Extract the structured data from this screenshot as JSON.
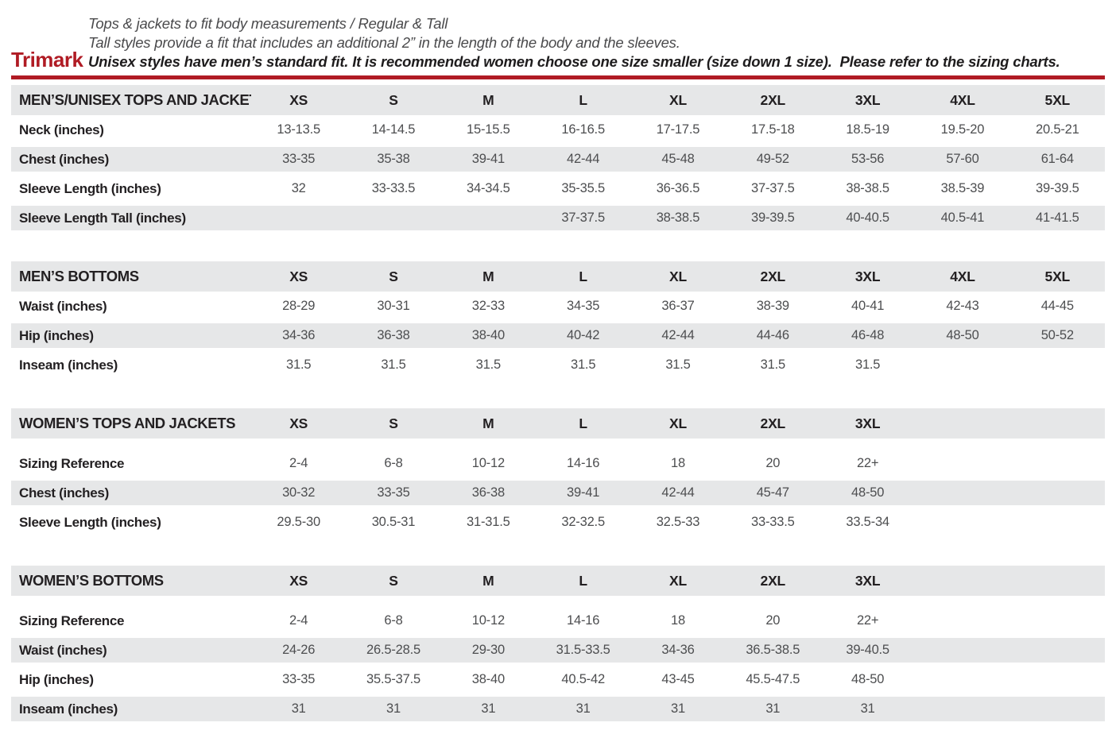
{
  "brand": "Trimark",
  "intro": {
    "line1": "Tops & jackets to fit body measurements / Regular & Tall",
    "line2": "Tall styles provide a fit that includes an additional 2” in the length of the body and the sleeves.",
    "line3": "Unisex styles have men’s standard fit. It is recommended women choose one size smaller (size down 1 size).  Please refer to the sizing charts."
  },
  "colors": {
    "accent_red": "#b01b24",
    "row_stripe": "#e6e7e8",
    "label_text": "#232022",
    "value_text": "#4d4e50"
  },
  "tables": [
    {
      "title": "MEN’S/UNISEX TOPS AND JACKETS",
      "sizes": [
        "XS",
        "S",
        "M",
        "L",
        "XL",
        "2XL",
        "3XL",
        "4XL",
        "5XL"
      ],
      "rows": [
        {
          "label": "Neck (inches)",
          "values": [
            "13-13.5",
            "14-14.5",
            "15-15.5",
            "16-16.5",
            "17-17.5",
            "17.5-18",
            "18.5-19",
            "19.5-20",
            "20.5-21"
          ]
        },
        {
          "label": "Chest (inches)",
          "values": [
            "33-35",
            "35-38",
            "39-41",
            "42-44",
            "45-48",
            "49-52",
            "53-56",
            "57-60",
            "61-64"
          ]
        },
        {
          "label": "Sleeve Length (inches)",
          "values": [
            "32",
            "33-33.5",
            "34-34.5",
            "35-35.5",
            "36-36.5",
            "37-37.5",
            "38-38.5",
            "38.5-39",
            "39-39.5"
          ]
        },
        {
          "label": "Sleeve Length Tall (inches)",
          "values": [
            "",
            "",
            "",
            "37-37.5",
            "38-38.5",
            "39-39.5",
            "40-40.5",
            "40.5-41",
            "41-41.5"
          ]
        }
      ]
    },
    {
      "title": "MEN’S BOTTOMS",
      "sizes": [
        "XS",
        "S",
        "M",
        "L",
        "XL",
        "2XL",
        "3XL",
        "4XL",
        "5XL"
      ],
      "rows": [
        {
          "label": "Waist (inches)",
          "values": [
            "28-29",
            "30-31",
            "32-33",
            "34-35",
            "36-37",
            "38-39",
            "40-41",
            "42-43",
            "44-45"
          ]
        },
        {
          "label": "Hip (inches)",
          "values": [
            "34-36",
            "36-38",
            "38-40",
            "40-42",
            "42-44",
            "44-46",
            "46-48",
            "48-50",
            "50-52"
          ]
        },
        {
          "label": "Inseam (inches)",
          "values": [
            "31.5",
            "31.5",
            "31.5",
            "31.5",
            "31.5",
            "31.5",
            "31.5",
            "",
            ""
          ]
        }
      ]
    },
    {
      "title": "WOMEN’S TOPS AND JACKETS",
      "sizes": [
        "XS",
        "S",
        "M",
        "L",
        "XL",
        "2XL",
        "3XL"
      ],
      "rows": [
        {
          "label": "Sizing Reference",
          "values": [
            "2-4",
            "6-8",
            "10-12",
            "14-16",
            "18",
            "20",
            "22+"
          ]
        },
        {
          "label": "Chest (inches)",
          "values": [
            "30-32",
            "33-35",
            "36-38",
            "39-41",
            "42-44",
            "45-47",
            "48-50"
          ]
        },
        {
          "label": "Sleeve Length (inches)",
          "values": [
            "29.5-30",
            "30.5-31",
            "31-31.5",
            "32-32.5",
            "32.5-33",
            "33-33.5",
            "33.5-34"
          ]
        }
      ]
    },
    {
      "title": "WOMEN’S BOTTOMS",
      "sizes": [
        "XS",
        "S",
        "M",
        "L",
        "XL",
        "2XL",
        "3XL"
      ],
      "rows": [
        {
          "label": "Sizing Reference",
          "values": [
            "2-4",
            "6-8",
            "10-12",
            "14-16",
            "18",
            "20",
            "22+"
          ]
        },
        {
          "label": "Waist (inches)",
          "values": [
            "24-26",
            "26.5-28.5",
            "29-30",
            "31.5-33.5",
            "34-36",
            "36.5-38.5",
            "39-40.5"
          ]
        },
        {
          "label": "Hip (inches)",
          "values": [
            "33-35",
            "35.5-37.5",
            "38-40",
            "40.5-42",
            "43-45",
            "45.5-47.5",
            "48-50"
          ]
        },
        {
          "label": "Inseam (inches)",
          "values": [
            "31",
            "31",
            "31",
            "31",
            "31",
            "31",
            "31"
          ]
        }
      ]
    }
  ]
}
